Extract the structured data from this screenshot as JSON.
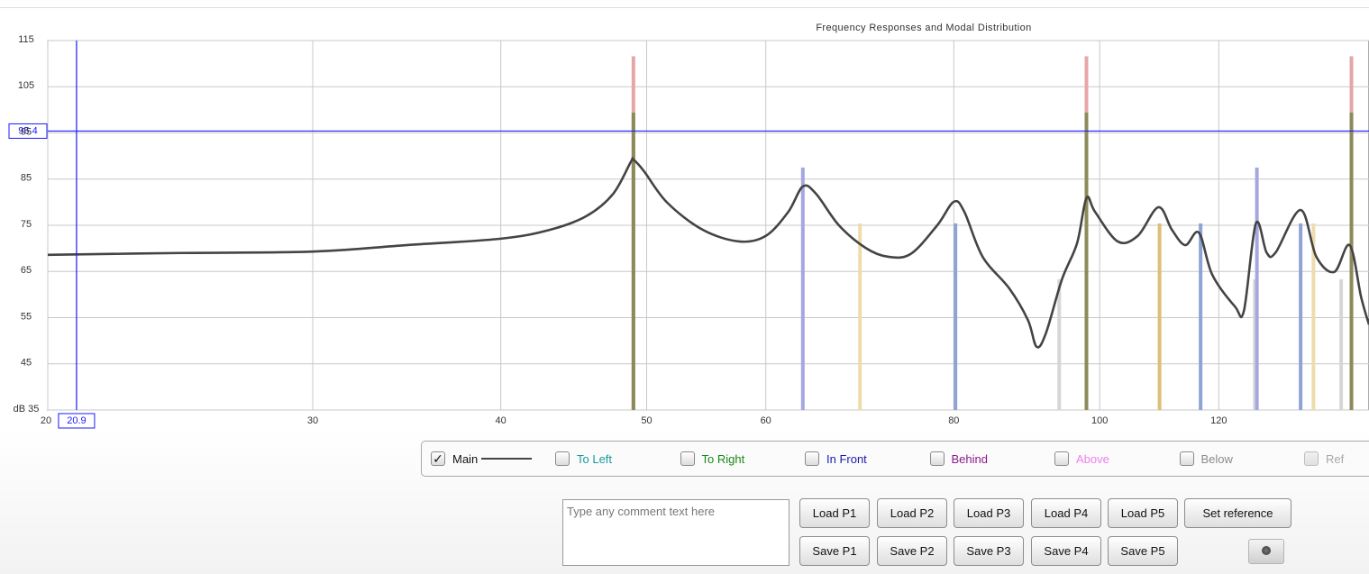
{
  "chart_data": {
    "type": "line",
    "title": "Frequency Responses and Modal Distribution",
    "log_x": true,
    "grid": true,
    "xlim": [
      20,
      151
    ],
    "ylim": [
      35,
      115
    ],
    "xticks": [
      20,
      30,
      40,
      50,
      60,
      80,
      100,
      120
    ],
    "yticks": [
      {
        "value": 35,
        "label": "dB 35"
      },
      45,
      55,
      65,
      75,
      85,
      95,
      105,
      115
    ],
    "x": [
      20,
      24.5,
      30,
      34.6,
      40,
      43.1,
      45.6,
      47.5,
      48.8,
      49.0,
      49.8,
      51.6,
      54.5,
      57.6,
      60.0,
      62.1,
      63.5,
      64.8,
      67.1,
      69.9,
      72.3,
      74.9,
      78.0,
      80.0,
      81.3,
      83.6,
      87.1,
      89.6,
      90.8,
      92.1,
      94.4,
      96.6,
      98.0,
      99.3,
      102.8,
      106.0,
      109.4,
      111.7,
      114.0,
      116.4,
      118.8,
      123.0,
      124.7,
      127.0,
      129.1,
      130.9,
      136.0,
      139.3,
      143.2,
      146.6,
      149.2,
      151.0
    ],
    "series": [
      {
        "name": "Main",
        "color": "#444444",
        "visible": true,
        "values": [
          68.6,
          69.0,
          69.3,
          70.7,
          72.1,
          74.0,
          77.0,
          81.8,
          88.7,
          89.2,
          86.7,
          79.9,
          74.0,
          71.5,
          72.7,
          77.9,
          83.4,
          81.8,
          75.0,
          70.1,
          68.2,
          68.8,
          75.0,
          80.1,
          77.9,
          68.2,
          61.3,
          54.5,
          48.7,
          51.6,
          63.3,
          71.1,
          80.9,
          77.9,
          71.5,
          72.7,
          78.9,
          74.0,
          70.7,
          73.4,
          64.3,
          57.4,
          56.5,
          75.4,
          69.1,
          69.1,
          78.3,
          68.2,
          64.9,
          70.7,
          59.4,
          53.5
        ]
      }
    ],
    "modes": {
      "x": [
        49.0,
        49.0,
        63.5,
        69.3,
        80.2,
        94.0,
        98.0,
        98.0,
        109.6,
        116.7,
        126.8,
        127.2,
        136.0,
        138.7,
        144.7,
        147.0,
        147.0
      ],
      "values": [
        111.6,
        99.4,
        87.5,
        75.4,
        75.4,
        63.3,
        111.6,
        99.4,
        75.4,
        75.4,
        63.3,
        87.5,
        75.4,
        75.4,
        63.3,
        111.6,
        99.4
      ],
      "colors": [
        "#e6a6a6",
        "#8c8a5a",
        "#a6a6e0",
        "#eedcaa",
        "#8ea4d4",
        "#d6d6d6",
        "#e6a6a6",
        "#8c8a5a",
        "#dcbe78",
        "#8ea4d4",
        "#d6d6d6",
        "#a6a6e0",
        "#8ea4d4",
        "#eedcaa",
        "#d6d6d6",
        "#e6a6a6",
        "#8c8a5a"
      ]
    },
    "cursor": {
      "x": 20.9,
      "y": 95.4,
      "color": "#1a1aff"
    }
  },
  "controls": {
    "toggles": [
      {
        "label": "To Left",
        "color": "#1a9a9a",
        "checked": false,
        "enabled": true
      },
      {
        "label": "To Right",
        "color": "#1a881a",
        "checked": false,
        "enabled": true
      },
      {
        "label": "In Front",
        "color": "#1a1aaa",
        "checked": false,
        "enabled": true
      },
      {
        "label": "Behind",
        "color": "#8a1a8a",
        "checked": false,
        "enabled": true
      },
      {
        "label": "Above",
        "color": "#ee80ee",
        "checked": false,
        "enabled": true
      },
      {
        "label": "Below",
        "color": "#8a8a8a",
        "checked": false,
        "enabled": true
      },
      {
        "label": "Ref",
        "color": "#a8a8a8",
        "checked": false,
        "enabled": false
      }
    ],
    "comment_placeholder": "Type any comment text here",
    "load_buttons": [
      "Load P1",
      "Load P2",
      "Load P3",
      "Load P4",
      "Load P5"
    ],
    "set_reference": "Set reference",
    "save_buttons": [
      "Save P1",
      "Save P2",
      "Save P3",
      "Save P4",
      "Save P5"
    ]
  }
}
